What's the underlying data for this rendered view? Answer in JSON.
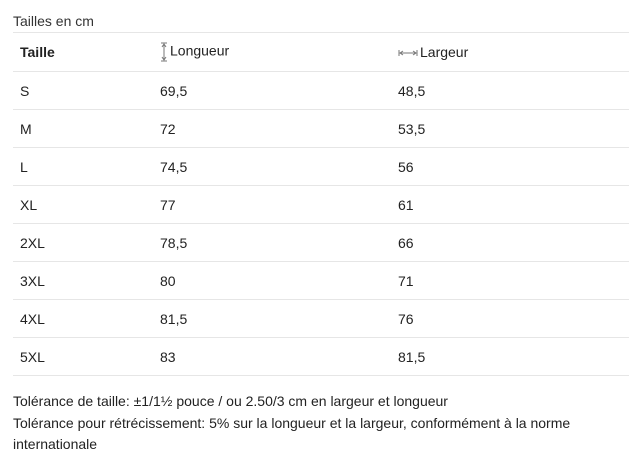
{
  "title": "Tailles en cm",
  "headers": {
    "size": "Taille",
    "length": "Longueur",
    "width": "Largeur",
    "length_icon": "vertical-measure-icon",
    "width_icon": "horizontal-measure-icon"
  },
  "rows": [
    {
      "size": "S",
      "length": "69,5",
      "width": "48,5"
    },
    {
      "size": "M",
      "length": "72",
      "width": "53,5"
    },
    {
      "size": "L",
      "length": "74,5",
      "width": "56"
    },
    {
      "size": "XL",
      "length": "77",
      "width": "61"
    },
    {
      "size": "2XL",
      "length": "78,5",
      "width": "66"
    },
    {
      "size": "3XL",
      "length": "80",
      "width": "71"
    },
    {
      "size": "4XL",
      "length": "81,5",
      "width": "76"
    },
    {
      "size": "5XL",
      "length": "83",
      "width": "81,5"
    }
  ],
  "notes": [
    "Tolérance de taille: ±1/1½ pouce / ou 2.50/3 cm en largeur et longueur",
    "Tolérance pour rétrécissement: 5% sur la longueur et la largeur, conformément à la norme internationale"
  ]
}
